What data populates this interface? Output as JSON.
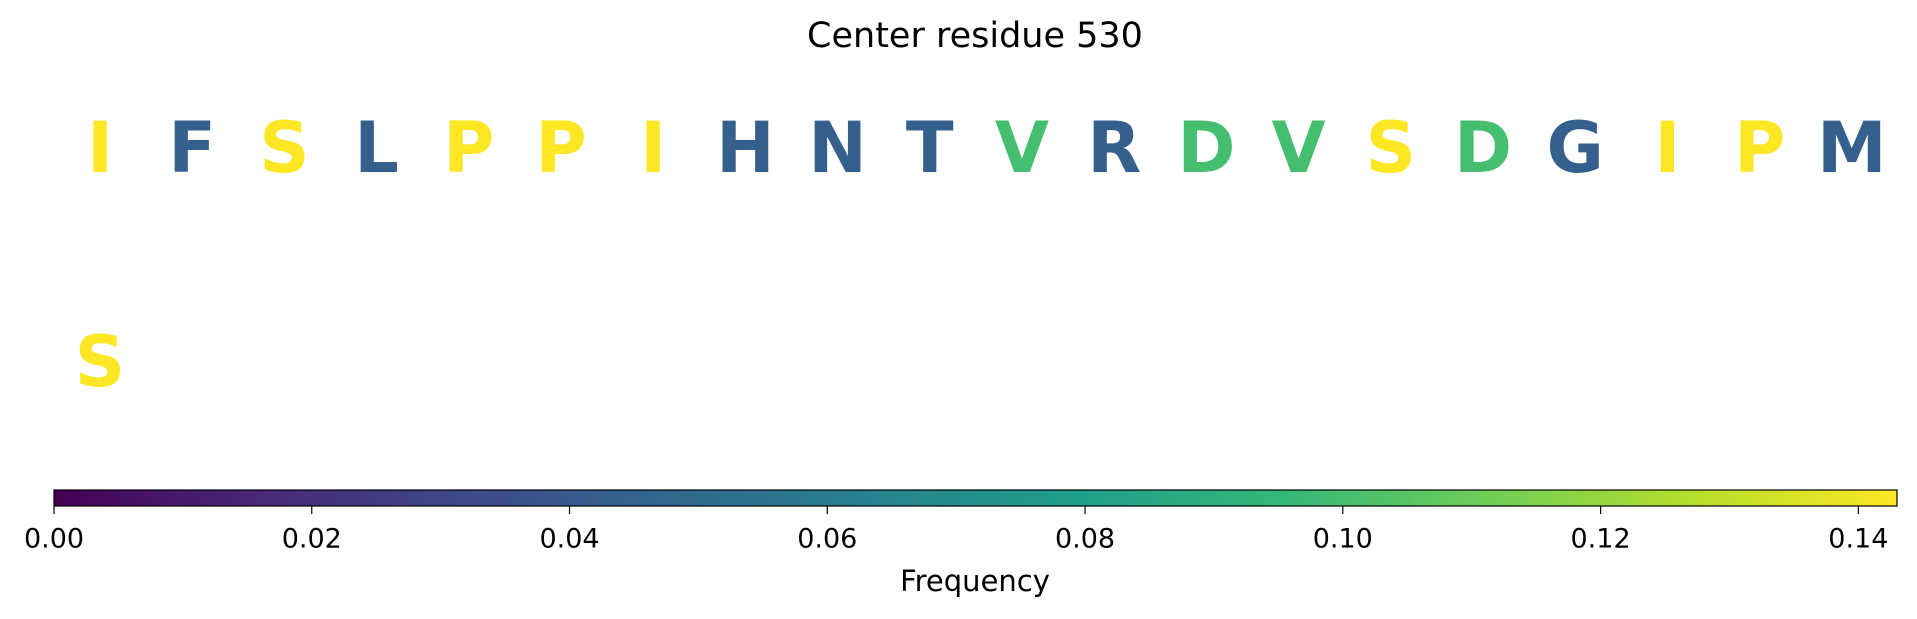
{
  "chart_data": {
    "type": "letter-grid",
    "title": "Center residue 530",
    "letters": [
      "I",
      "F",
      "S",
      "L",
      "P",
      "P",
      "I",
      "H",
      "N",
      "T",
      "V",
      "R",
      "D",
      "V",
      "S",
      "D",
      "G",
      "I",
      "P",
      "M",
      "S"
    ],
    "values": [
      0.143,
      0.043,
      0.143,
      0.043,
      0.143,
      0.143,
      0.143,
      0.043,
      0.043,
      0.043,
      0.1,
      0.043,
      0.1,
      0.1,
      0.143,
      0.1,
      0.043,
      0.143,
      0.143,
      0.043,
      0.143
    ],
    "colormap": "viridis",
    "colorbar": {
      "label": "Frequency",
      "xlim": [
        0,
        0.143
      ],
      "xticks": [
        {
          "value": 0,
          "label": "0.00"
        },
        {
          "value": 0.02,
          "label": "0.02"
        },
        {
          "value": 0.04,
          "label": "0.04"
        },
        {
          "value": 0.06,
          "label": "0.06"
        },
        {
          "value": 0.08,
          "label": "0.08"
        },
        {
          "value": 0.1,
          "label": "0.10"
        },
        {
          "value": 0.12,
          "label": "0.12"
        },
        {
          "value": 0.14,
          "label": "0.14"
        }
      ]
    }
  }
}
